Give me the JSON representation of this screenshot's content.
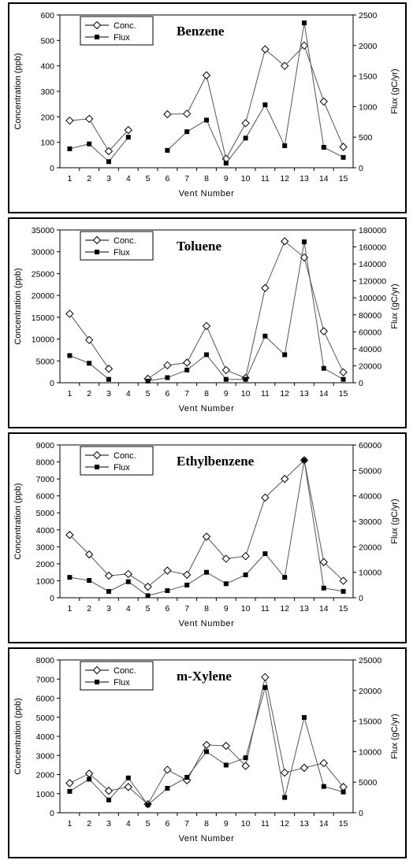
{
  "chart_data": [
    {
      "type": "line",
      "title": "Benzene",
      "xlabel": "Vent Number",
      "ylabel": "Concentration (ppb)",
      "y2label": "Flux (gC/yr)",
      "categories": [
        1,
        2,
        3,
        4,
        5,
        6,
        7,
        8,
        9,
        10,
        11,
        12,
        13,
        14,
        15
      ],
      "ylim": [
        0,
        600
      ],
      "yticks": [
        0,
        100,
        200,
        300,
        400,
        500,
        600
      ],
      "y2lim": [
        0,
        2500
      ],
      "y2ticks": [
        0,
        500,
        1000,
        1500,
        2000,
        2500
      ],
      "legend_position": "top-left",
      "series": [
        {
          "name": "Conc.",
          "axis": "left",
          "marker": "open-diamond",
          "values": [
            185,
            192,
            65,
            148,
            null,
            210,
            212,
            363,
            35,
            175,
            465,
            400,
            480,
            260,
            82
          ]
        },
        {
          "name": "Flux",
          "axis": "right",
          "marker": "filled-square",
          "values": [
            310,
            390,
            100,
            500,
            null,
            285,
            590,
            780,
            75,
            485,
            1030,
            360,
            2370,
            335,
            170
          ]
        }
      ]
    },
    {
      "type": "line",
      "title": "Toluene",
      "xlabel": "Vent Number",
      "ylabel": "Concentration (ppb)",
      "y2label": "Flux (gC/yr)",
      "categories": [
        1,
        2,
        3,
        4,
        5,
        6,
        7,
        8,
        9,
        10,
        11,
        12,
        13,
        14,
        15
      ],
      "ylim": [
        0,
        35000
      ],
      "yticks": [
        0,
        5000,
        10000,
        15000,
        20000,
        25000,
        30000,
        35000
      ],
      "y2lim": [
        0,
        180000
      ],
      "y2ticks": [
        0,
        20000,
        40000,
        60000,
        80000,
        100000,
        120000,
        140000,
        160000,
        180000
      ],
      "legend_position": "top-left",
      "series": [
        {
          "name": "Conc.",
          "axis": "left",
          "marker": "open-diamond",
          "values": [
            15800,
            9800,
            3200,
            null,
            900,
            4000,
            4600,
            13000,
            2900,
            1100,
            21700,
            32400,
            28700,
            11800,
            2400
          ]
        },
        {
          "name": "Flux",
          "axis": "right",
          "marker": "filled-square",
          "values": [
            32000,
            23000,
            4000,
            null,
            2000,
            6000,
            15000,
            33000,
            4000,
            4000,
            55000,
            33000,
            166000,
            17000,
            4000
          ]
        }
      ]
    },
    {
      "type": "line",
      "title": "Ethylbenzene",
      "xlabel": "Vent Number",
      "ylabel": "Concentration (ppb)",
      "y2label": "Flux (gC/yr)",
      "categories": [
        1,
        2,
        3,
        4,
        5,
        6,
        7,
        8,
        9,
        10,
        11,
        12,
        13,
        14,
        15
      ],
      "ylim": [
        0,
        9000
      ],
      "yticks": [
        0,
        1000,
        2000,
        3000,
        4000,
        5000,
        6000,
        7000,
        8000,
        9000
      ],
      "y2lim": [
        0,
        60000
      ],
      "y2ticks": [
        0,
        10000,
        20000,
        30000,
        40000,
        50000,
        60000
      ],
      "legend_position": "top-left",
      "series": [
        {
          "name": "Conc.",
          "axis": "left",
          "marker": "open-diamond",
          "values": [
            3700,
            2550,
            1300,
            1400,
            650,
            1600,
            1350,
            3600,
            2300,
            2450,
            5900,
            7000,
            8100,
            2100,
            1000
          ]
        },
        {
          "name": "Flux",
          "axis": "right",
          "marker": "filled-square",
          "values": [
            8000,
            6800,
            2500,
            6300,
            800,
            2800,
            5000,
            10000,
            5500,
            9000,
            17300,
            8000,
            54000,
            3800,
            2500
          ]
        }
      ]
    },
    {
      "type": "line",
      "title": "m-Xylene",
      "xlabel": "Vent Number",
      "ylabel": "Concentration (ppb)",
      "y2label": "Flux (gC/yr)",
      "categories": [
        1,
        2,
        3,
        4,
        5,
        6,
        7,
        8,
        9,
        10,
        11,
        12,
        13,
        14,
        15
      ],
      "ylim": [
        0,
        8000
      ],
      "yticks": [
        0,
        1000,
        2000,
        3000,
        4000,
        5000,
        6000,
        7000,
        8000
      ],
      "y2lim": [
        0,
        25000
      ],
      "y2ticks": [
        0,
        5000,
        10000,
        15000,
        20000,
        25000
      ],
      "legend_position": "top-left",
      "series": [
        {
          "name": "Conc.",
          "axis": "left",
          "marker": "open-diamond",
          "values": [
            1550,
            2050,
            1150,
            1350,
            450,
            2250,
            1700,
            3550,
            3500,
            2450,
            7100,
            2100,
            2350,
            2600,
            1350
          ]
        },
        {
          "name": "Flux",
          "axis": "right",
          "marker": "filled-square",
          "values": [
            3500,
            5500,
            2100,
            5700,
            1300,
            4000,
            5800,
            10000,
            7800,
            9000,
            20500,
            2500,
            15600,
            4300,
            3400
          ]
        }
      ]
    }
  ]
}
